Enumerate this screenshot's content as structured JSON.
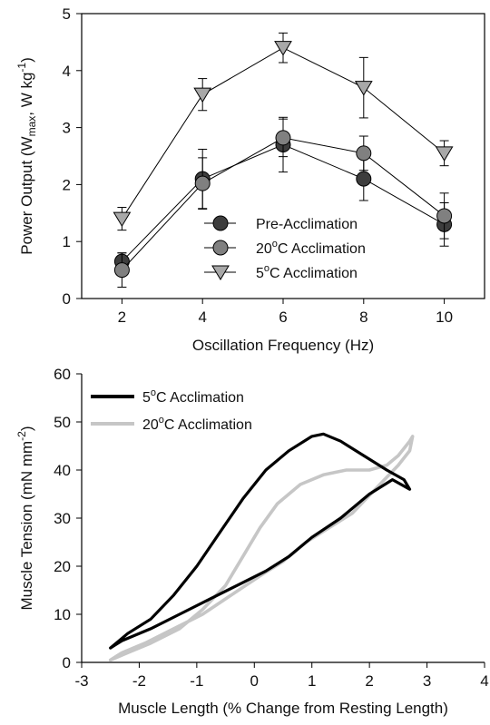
{
  "chart_data": [
    {
      "type": "line",
      "xlabel": "Oscillation Frequency (Hz)",
      "ylabel_parts": [
        "Power Output (W",
        "max",
        ", W kg",
        "-1",
        ")"
      ],
      "x": [
        2,
        4,
        6,
        8,
        10
      ],
      "xlim": [
        1,
        11
      ],
      "ylim": [
        0,
        5
      ],
      "x_ticks": [
        "2",
        "4",
        "6",
        "8",
        "10"
      ],
      "y_ticks": [
        "0",
        "1",
        "2",
        "3",
        "4",
        "5"
      ],
      "legend_position": "center",
      "series": [
        {
          "name": "Pre-Acclimation",
          "marker": "circle",
          "color": "#3d3d3d",
          "values": [
            0.65,
            2.1,
            2.7,
            2.1,
            1.3
          ],
          "error": [
            0.15,
            0.52,
            0.48,
            0.38,
            0.38
          ]
        },
        {
          "name_parts": [
            "20",
            "o",
            "C Acclimation"
          ],
          "marker": "circle",
          "color": "#808080",
          "values": [
            0.5,
            2.02,
            2.82,
            2.55,
            1.45
          ],
          "error": [
            0.3,
            0.45,
            0.33,
            0.3,
            0.4
          ]
        },
        {
          "name_parts": [
            "5",
            "o",
            "C Acclimation"
          ],
          "marker": "triangle-down",
          "color": "#a8a8a8",
          "values": [
            1.4,
            3.58,
            4.4,
            3.7,
            2.55
          ],
          "error": [
            0.2,
            0.28,
            0.26,
            0.53,
            0.22
          ]
        }
      ]
    },
    {
      "type": "line",
      "subtype": "work-loop",
      "xlabel": "Muscle Length (% Change from Resting Length)",
      "ylabel_parts": [
        "Muscle Tension (mN mm",
        "-2",
        ")"
      ],
      "xlim": [
        -3,
        4
      ],
      "ylim": [
        0,
        60
      ],
      "x_ticks": [
        "-3",
        "-2",
        "-1",
        "0",
        "1",
        "2",
        "3",
        "4"
      ],
      "y_ticks": [
        "0",
        "10",
        "20",
        "30",
        "40",
        "50",
        "60"
      ],
      "legend_position": "top-left",
      "series": [
        {
          "name_parts": [
            "5",
            "o",
            "C Acclimation"
          ],
          "color": "#000000",
          "points": [
            [
              -2.5,
              3
            ],
            [
              -2.2,
              6
            ],
            [
              -1.8,
              9
            ],
            [
              -1.4,
              14
            ],
            [
              -1.0,
              20
            ],
            [
              -0.6,
              27
            ],
            [
              -0.2,
              34
            ],
            [
              0.2,
              40
            ],
            [
              0.6,
              44
            ],
            [
              1.0,
              47
            ],
            [
              1.2,
              47.5
            ],
            [
              1.5,
              46
            ],
            [
              1.9,
              43
            ],
            [
              2.3,
              40
            ],
            [
              2.6,
              38
            ],
            [
              2.7,
              36
            ],
            [
              2.4,
              38
            ],
            [
              2.0,
              35
            ],
            [
              1.5,
              30
            ],
            [
              1.0,
              26
            ],
            [
              0.6,
              22
            ],
            [
              0.2,
              19
            ],
            [
              -0.3,
              16
            ],
            [
              -0.8,
              13
            ],
            [
              -1.3,
              10
            ],
            [
              -1.8,
              7
            ],
            [
              -2.3,
              4.5
            ],
            [
              -2.5,
              3
            ]
          ]
        },
        {
          "name_parts": [
            "20",
            "o",
            "C Acclimation"
          ],
          "color": "#c6c6c6",
          "points": [
            [
              -2.5,
              0.5
            ],
            [
              -2.2,
              2
            ],
            [
              -1.8,
              4
            ],
            [
              -1.3,
              7
            ],
            [
              -0.9,
              11
            ],
            [
              -0.5,
              16
            ],
            [
              -0.2,
              22
            ],
            [
              0.1,
              28
            ],
            [
              0.4,
              33
            ],
            [
              0.8,
              37
            ],
            [
              1.2,
              39
            ],
            [
              1.6,
              40
            ],
            [
              2.0,
              40
            ],
            [
              2.3,
              41
            ],
            [
              2.5,
              43
            ],
            [
              2.7,
              46
            ],
            [
              2.75,
              47
            ],
            [
              2.7,
              44
            ],
            [
              2.5,
              41
            ],
            [
              2.1,
              36
            ],
            [
              1.7,
              31
            ],
            [
              1.3,
              28
            ],
            [
              0.9,
              25
            ],
            [
              0.5,
              21
            ],
            [
              0.1,
              18
            ],
            [
              -0.4,
              14
            ],
            [
              -0.9,
              10
            ],
            [
              -1.4,
              7
            ],
            [
              -1.9,
              4
            ],
            [
              -2.3,
              2
            ],
            [
              -2.5,
              0.5
            ]
          ]
        }
      ]
    }
  ]
}
